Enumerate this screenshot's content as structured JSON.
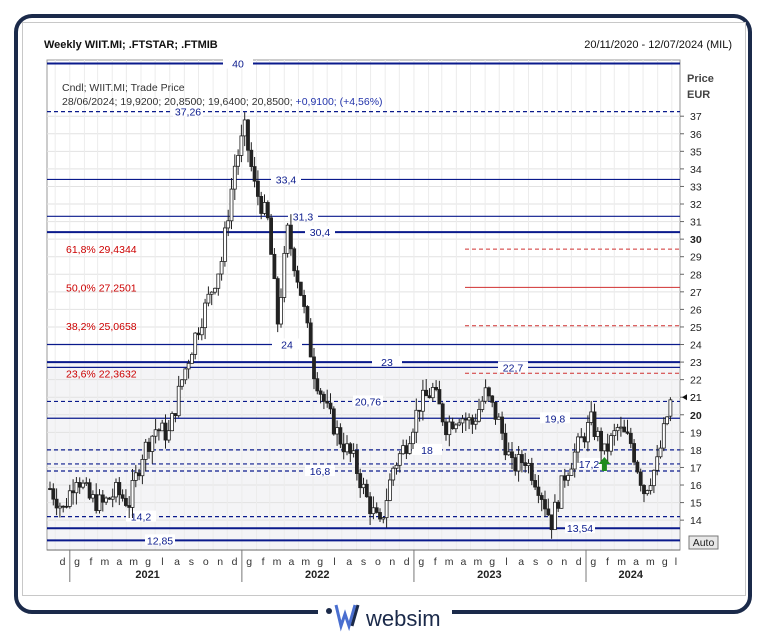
{
  "header": {
    "title": "Weekly WIIT.MI; .FTSTAR; .FTMIB",
    "date_range": "20/11/2020 - 12/07/2024 (MIL)"
  },
  "info": {
    "line1": "Cndl; WIIT.MI; Trade Price",
    "line2_black": "28/06/2024; 19,9200; 20,8500; 19,6400; 20,8500;",
    "line2_blue": " +0,9100; (+4,56%)"
  },
  "axis": {
    "price_label": "Price",
    "currency": "EUR",
    "auto_button": "Auto",
    "y_ticks": [
      "14",
      "15",
      "16",
      "17",
      "18",
      "19",
      "20",
      "21",
      "22",
      "23",
      "24",
      "25",
      "26",
      "27",
      "28",
      "29",
      "30",
      "31",
      "32",
      "33",
      "34",
      "35",
      "36",
      "37"
    ],
    "bold_ticks": [
      "20",
      "30"
    ],
    "months": [
      "d",
      "g",
      "f",
      "m",
      "a",
      "m",
      "g",
      "l",
      "a",
      "s",
      "o",
      "n",
      "d",
      "g",
      "f",
      "m",
      "a",
      "m",
      "g",
      "l",
      "a",
      "s",
      "o",
      "n",
      "d",
      "g",
      "f",
      "m",
      "a",
      "m",
      "g",
      "l",
      "a",
      "s",
      "o",
      "n",
      "d",
      "g",
      "f",
      "m",
      "a",
      "m",
      "g",
      "l"
    ],
    "years": [
      "2021",
      "2022",
      "2023",
      "2024"
    ],
    "last_value": "21",
    "ylim": [
      12.3,
      40.2
    ]
  },
  "chart_data": {
    "type": "candlestick",
    "title": "Weekly WIIT.MI; .FTSTAR; .FTMIB",
    "ylabel": "Price EUR",
    "ylim": [
      12.3,
      40.2
    ],
    "x_start": "2020-11-20",
    "x_end": "2024-07-12",
    "horizontal_levels": [
      {
        "value": 40,
        "label": "40",
        "style": "solid"
      },
      {
        "value": 37.26,
        "label": "37,26",
        "style": "dashed"
      },
      {
        "value": 33.4,
        "label": "33,4",
        "style": "solid"
      },
      {
        "value": 31.3,
        "label": "31,3",
        "style": "solid"
      },
      {
        "value": 30.4,
        "label": "30,4",
        "style": "solid"
      },
      {
        "value": 24,
        "label": "24",
        "style": "solid"
      },
      {
        "value": 23,
        "label": "23",
        "style": "solid"
      },
      {
        "value": 22.7,
        "label": "22,7",
        "style": "solid"
      },
      {
        "value": 20.76,
        "label": "20,76",
        "style": "dashed"
      },
      {
        "value": 19.8,
        "label": "19,8",
        "style": "solid"
      },
      {
        "value": 18,
        "label": "18",
        "style": "dashed"
      },
      {
        "value": 17.2,
        "label": "17,2",
        "style": "dashed"
      },
      {
        "value": 16.8,
        "label": "16,8",
        "style": "dashed"
      },
      {
        "value": 14.2,
        "label": "14,2",
        "style": "dashed"
      },
      {
        "value": 13.54,
        "label": "13,54",
        "style": "solid"
      },
      {
        "value": 12.85,
        "label": "12,85",
        "style": "solid"
      }
    ],
    "fibonacci": [
      {
        "label": "61,8% 29,4344",
        "value": 29.4344
      },
      {
        "label": "50,0% 27,2501",
        "value": 27.2501
      },
      {
        "label": "38,2% 25,0658",
        "value": 25.0658
      },
      {
        "label": "23,6% 22,3632",
        "value": 22.3632
      }
    ],
    "series": [
      {
        "type": "candle",
        "anchors": [
          {
            "date": "2020-11-20",
            "close": 15.8
          },
          {
            "date": "2020-12-18",
            "close": 14.6
          },
          {
            "date": "2021-01-15",
            "close": 16.6
          },
          {
            "date": "2021-02-12",
            "close": 15.2
          },
          {
            "date": "2021-03-12",
            "close": 14.9
          },
          {
            "date": "2021-04-09",
            "close": 15.6
          },
          {
            "date": "2021-05-07",
            "close": 15.0
          },
          {
            "date": "2021-06-04",
            "close": 17.8
          },
          {
            "date": "2021-07-02",
            "close": 19.2
          },
          {
            "date": "2021-07-30",
            "close": 18.9
          },
          {
            "date": "2021-08-27",
            "close": 22.0
          },
          {
            "date": "2021-09-24",
            "close": 24.5
          },
          {
            "date": "2021-10-22",
            "close": 26.6
          },
          {
            "date": "2021-11-19",
            "close": 28.8
          },
          {
            "date": "2021-12-17",
            "close": 34.2
          },
          {
            "date": "2022-01-07",
            "close": 36.2
          },
          {
            "date": "2022-01-28",
            "close": 33.0
          },
          {
            "date": "2022-02-25",
            "close": 31.0
          },
          {
            "date": "2022-03-18",
            "close": 25.3
          },
          {
            "date": "2022-04-08",
            "close": 30.4
          },
          {
            "date": "2022-05-06",
            "close": 27.0
          },
          {
            "date": "2022-06-03",
            "close": 22.5
          },
          {
            "date": "2022-07-01",
            "close": 20.2
          },
          {
            "date": "2022-07-29",
            "close": 18.6
          },
          {
            "date": "2022-08-26",
            "close": 17.4
          },
          {
            "date": "2022-09-23",
            "close": 15.2
          },
          {
            "date": "2022-10-21",
            "close": 13.6
          },
          {
            "date": "2022-11-18",
            "close": 17.0
          },
          {
            "date": "2022-12-16",
            "close": 18.4
          },
          {
            "date": "2023-01-13",
            "close": 20.6
          },
          {
            "date": "2023-02-10",
            "close": 21.4
          },
          {
            "date": "2023-03-10",
            "close": 19.4
          },
          {
            "date": "2023-04-07",
            "close": 20.0
          },
          {
            "date": "2023-05-05",
            "close": 19.5
          },
          {
            "date": "2023-06-02",
            "close": 21.2
          },
          {
            "date": "2023-06-30",
            "close": 19.6
          },
          {
            "date": "2023-07-28",
            "close": 17.0
          },
          {
            "date": "2023-08-25",
            "close": 17.5
          },
          {
            "date": "2023-09-22",
            "close": 16.0
          },
          {
            "date": "2023-10-20",
            "close": 13.9
          },
          {
            "date": "2023-11-17",
            "close": 16.6
          },
          {
            "date": "2023-12-15",
            "close": 18.2
          },
          {
            "date": "2024-01-12",
            "close": 19.6
          },
          {
            "date": "2024-02-09",
            "close": 17.8
          },
          {
            "date": "2024-03-08",
            "close": 19.2
          },
          {
            "date": "2024-04-05",
            "close": 18.4
          },
          {
            "date": "2024-05-03",
            "close": 15.7
          },
          {
            "date": "2024-05-31",
            "close": 17.2
          },
          {
            "date": "2024-06-21",
            "close": 19.9
          },
          {
            "date": "2024-06-28",
            "close": 20.85
          }
        ]
      }
    ],
    "annotations": [
      {
        "type": "arrow-up",
        "date": "2024-02-09",
        "value": 17.2,
        "color": "#1e8c1e"
      }
    ],
    "grid": true
  },
  "colors": {
    "level_line": "#0a1a8c",
    "fib_text": "#cc0000",
    "candle": "#222222",
    "arrow": "#1e8c1e",
    "frame": "#1b2a4a"
  },
  "footer": {
    "brand": "websim"
  }
}
